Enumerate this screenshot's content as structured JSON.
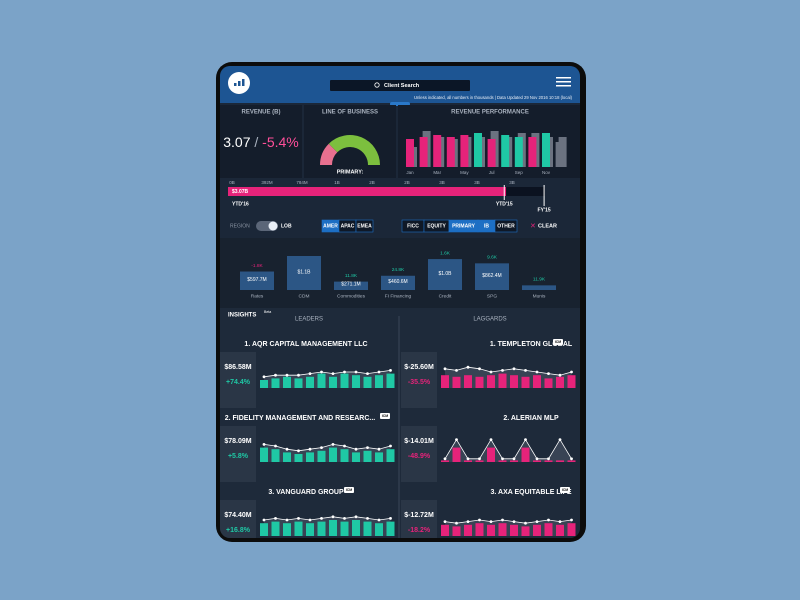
{
  "header": {
    "search": "Client Search",
    "note": "Unless indicated, all numbers in thousands | Data Updated 29 Nov 2016 10:18 (local)"
  },
  "revenue": {
    "title": "REVENUE (B)",
    "value": "3.07",
    "separator": "/",
    "change": "-5.4%"
  },
  "line_of_business": {
    "title": "LINE OF BUSINESS",
    "label": "PRIMARY:",
    "share": [
      {
        "value": 25,
        "color": "#e8708f"
      },
      {
        "value": 75,
        "color": "#7cbf3e"
      }
    ]
  },
  "revenue_performance": {
    "title": "REVENUE PERFORMANCE",
    "months": [
      "Jan",
      "Mar",
      "May",
      "Jul",
      "Sep",
      "Nov"
    ],
    "current": [
      28,
      30,
      32,
      30,
      32,
      34,
      28,
      32,
      30,
      30,
      34,
      25
    ],
    "prior": [
      20,
      36,
      30,
      28,
      30,
      30,
      36,
      30,
      34,
      34,
      30,
      30
    ],
    "colors": [
      "#e6237a",
      "#e6237a",
      "#e6237a",
      "#e6237a",
      "#e6237a",
      "#1fc8a5",
      "#e6237a",
      "#1fc8a5",
      "#1fc8a5",
      "#e6237a",
      "#1fc8a5",
      "#6b7280"
    ]
  },
  "progress": {
    "ticks": [
      "0B",
      "392M",
      "784M",
      "1B",
      "2B",
      "2B",
      "3B",
      "3B",
      "3B"
    ],
    "xlim": [
      0,
      3.5
    ],
    "value": 3.07,
    "label": "$3.07B",
    "ytd16": "YTD'16",
    "ytd15": "YTD'15",
    "ytd15_value": 3.05,
    "fy15": "FY'15",
    "fy15_value": 3.49
  },
  "filters": {
    "region": "REGION",
    "lob": "LOB",
    "regions": [
      "AMER",
      "APAC",
      "EMEA"
    ],
    "lines": [
      "FICC",
      "EQUITY",
      "PRIMARY",
      "IB",
      "OTHER"
    ],
    "clear": "CLEAR"
  },
  "businesses": [
    {
      "name": "Rates",
      "value": "$597.7M",
      "amount": 597.7,
      "change": "-1.8K",
      "color": "#e6237a"
    },
    {
      "name": "CDM",
      "value": "$1.1B",
      "amount": 1100
    },
    {
      "name": "Commodities",
      "value": "$271.1M",
      "amount": 271.1,
      "change": "11.8K",
      "color": "#1fc8a5"
    },
    {
      "name": "FI Financing",
      "value": "$460.6M",
      "amount": 460.6,
      "change": "24.8K",
      "color": "#1fc8a5"
    },
    {
      "name": "Credit",
      "value": "$1.0B",
      "amount": 1000,
      "change": "1.6K",
      "color": "#1fc8a5"
    },
    {
      "name": "SPG",
      "value": "$862.4M",
      "amount": 862.4,
      "change": "9.6K",
      "color": "#1fc8a5"
    },
    {
      "name": "Munis",
      "amount": 150,
      "change": "11.9K",
      "color": "#1fc8a5"
    }
  ],
  "insights": {
    "title": "INSIGHTS",
    "badge": "Beta",
    "leaders_title": "LEADERS",
    "laggards_title": "LAGGARDS",
    "leaders": [
      {
        "name": "1. AQR CAPITAL MANAGEMENT LLC",
        "amount": "$86.58M",
        "change": "+74.4%",
        "color": "#1fc8a5",
        "bars": [
          5,
          6,
          7,
          6,
          7,
          9,
          7,
          9,
          8,
          7,
          8,
          9
        ],
        "trend": [
          7,
          8,
          8,
          8,
          9,
          10,
          9,
          10,
          10,
          9,
          10,
          11
        ]
      },
      {
        "name": "2. FIDELITY MANAGEMENT AND RESEARC...",
        "tag": "ICM",
        "amount": "$78.09M",
        "change": "+5.8%",
        "color": "#1fc8a5",
        "bars": [
          9,
          8,
          6,
          5,
          6,
          7,
          9,
          8,
          6,
          7,
          6,
          8
        ],
        "trend": [
          11,
          10,
          8,
          7,
          8,
          9,
          11,
          10,
          8,
          9,
          8,
          10
        ]
      },
      {
        "name": "3. VANGUARD GROUP",
        "tag": "ICM",
        "amount": "$74.40M",
        "change": "+16.8%",
        "color": "#1fc8a5",
        "bars": [
          8,
          9,
          8,
          9,
          8,
          9,
          10,
          9,
          10,
          9,
          8,
          9
        ],
        "trend": [
          10,
          11,
          10,
          11,
          10,
          11,
          12,
          11,
          12,
          11,
          10,
          11
        ]
      }
    ],
    "laggards": [
      {
        "name": "1. TEMPLETON GLOBAL",
        "tag": "ICM",
        "amount": "$-25.60M",
        "change": "-35.5%",
        "color": "#e6237a",
        "bars": [
          8,
          7,
          8,
          7,
          8,
          9,
          8,
          7,
          8,
          6,
          7,
          8
        ],
        "trend": [
          12,
          11,
          13,
          12,
          10,
          11,
          12,
          11,
          10,
          9,
          8,
          10
        ]
      },
      {
        "name": "2. ALERIAN MLP",
        "amount": "$-14.01M",
        "change": "-48.9%",
        "color": "#e6237a",
        "bars": [
          1,
          9,
          1,
          1,
          9,
          1,
          1,
          9,
          1,
          1,
          1,
          1
        ],
        "trend": [
          2,
          14,
          2,
          2,
          14,
          2,
          2,
          14,
          2,
          2,
          14,
          2
        ]
      },
      {
        "name": "3. AXA EQUITABLE LIFE",
        "tag": "ICM",
        "amount": "$-12.72M",
        "change": "-18.2%",
        "color": "#e6237a",
        "bars": [
          7,
          6,
          7,
          8,
          7,
          8,
          7,
          6,
          7,
          8,
          7,
          8
        ],
        "trend": [
          9,
          8,
          9,
          10,
          9,
          10,
          9,
          8,
          9,
          10,
          9,
          10
        ]
      }
    ]
  }
}
